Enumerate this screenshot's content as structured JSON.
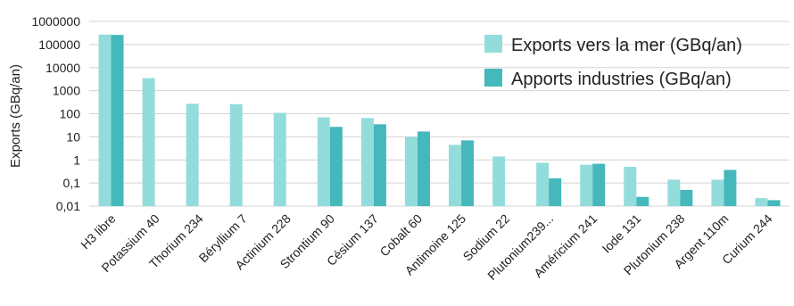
{
  "chart_data": {
    "type": "bar",
    "ylabel": "Exports (GBq/an)",
    "yscale": "log",
    "ylim": [
      0.01,
      1000000
    ],
    "ytick_labels": [
      "0,01",
      "0,1",
      "1",
      "10",
      "100",
      "1000",
      "10000",
      "100000",
      "1000000"
    ],
    "categories": [
      "H3 libre",
      "Potassium 40",
      "Thorium 234",
      "Béryllium 7",
      "Actinium 228",
      "Strontium 90",
      "Césium 137",
      "Cobalt 60",
      "Antimoine 125",
      "Sodium 22",
      "Plutonium239...",
      "Américium 241",
      "Iode 131",
      "Plutonium 238",
      "Argent 110m",
      "Curium 244"
    ],
    "series": [
      {
        "name": "Exports vers la mer (GBq/an)",
        "color": "#93dcdc",
        "values": [
          270000,
          3500,
          270,
          260,
          110,
          70,
          65,
          10,
          4.5,
          1.4,
          0.75,
          0.62,
          0.5,
          0.14,
          0.14,
          0.022
        ]
      },
      {
        "name": "Apports industries (GBq/an)",
        "color": "#45b8bc",
        "values": [
          260000,
          null,
          null,
          null,
          null,
          27,
          35,
          17,
          7,
          null,
          0.16,
          0.68,
          0.025,
          0.05,
          0.37,
          0.018
        ]
      }
    ],
    "legend_position": "top-right",
    "grid": true
  }
}
